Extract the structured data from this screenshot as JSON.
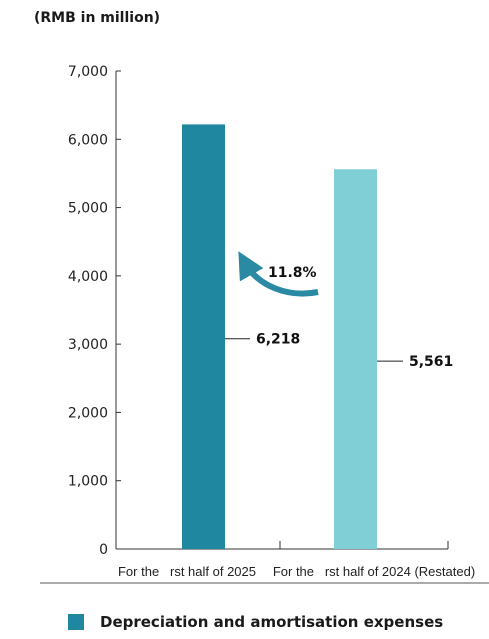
{
  "chart_data": {
    "type": "bar",
    "unit_label": "(RMB in million)",
    "categories": [
      "For the   rst half of 2025",
      "For the   rst half of 2024 (Restated)"
    ],
    "series": [
      {
        "name": "Depreciation and amortisation expenses",
        "values": [
          6218,
          5561
        ],
        "colors": [
          "#1f87a0",
          "#80cfd6"
        ]
      }
    ],
    "value_labels": [
      "6,218",
      "5,561"
    ],
    "change_label": "11.8%",
    "y_ticks": [
      "0",
      "1,000",
      "2,000",
      "3,000",
      "4,000",
      "5,000",
      "6,000",
      "7,000"
    ],
    "ylim": [
      0,
      7000
    ],
    "xlabel": "",
    "ylabel": "",
    "grid": false,
    "legend_position": "bottom"
  }
}
